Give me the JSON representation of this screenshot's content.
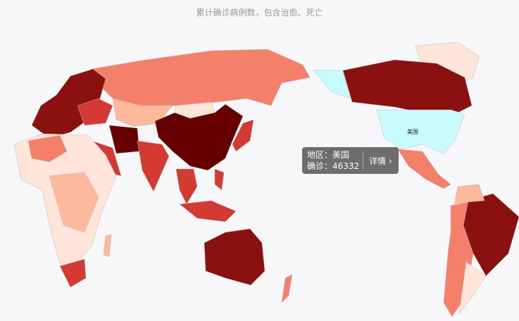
{
  "title": "累计确诊病例数，包含治愈、死亡",
  "map": {
    "highlighted_region": "美国",
    "highlight_color": "#c8fbfd",
    "scale_colors": [
      "#ffe4da",
      "#fcb99b",
      "#f4806b",
      "#d23a33",
      "#8b1010",
      "#660000"
    ]
  },
  "tooltip": {
    "region_label": "地区：美国",
    "confirmed_label": "确诊：46332",
    "detail_button": "详情 ›"
  }
}
